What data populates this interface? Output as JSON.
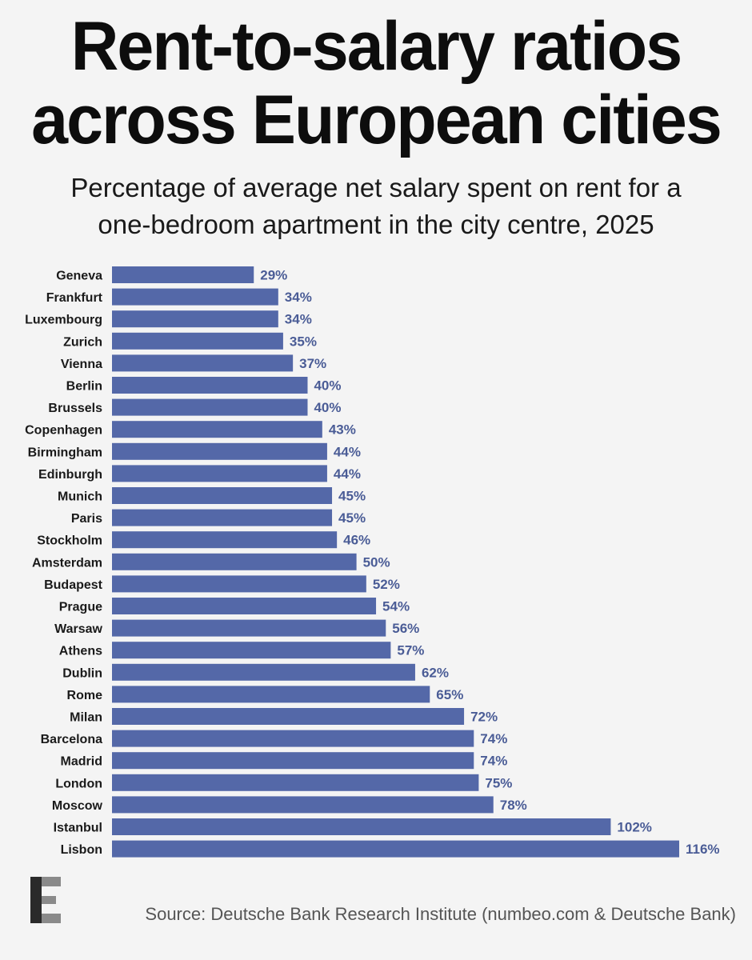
{
  "header": {
    "title_line1": "Rent-to-salary ratios",
    "title_line2": "across European cities",
    "subtitle_line1": "Percentage of average net salary spent on rent for a",
    "subtitle_line2": "one-bedroom apartment in the city centre, 2025"
  },
  "footer": {
    "source": "Source: Deutsche Bank Research Institute (numbeo.com & Deutsche Bank)",
    "logo_icon": "e-logo-icon"
  },
  "colors": {
    "bar": "#5468a8",
    "value_label": "#4a5c96",
    "background": "#f4f4f4"
  },
  "chart_data": {
    "type": "bar",
    "orientation": "horizontal",
    "title": "Rent-to-salary ratios across European cities",
    "subtitle": "Percentage of average net salary spent on rent for a one-bedroom apartment in the city centre, 2025",
    "xlabel": "",
    "ylabel": "",
    "unit": "%",
    "xlim": [
      0,
      116
    ],
    "grid": false,
    "categories": [
      "Geneva",
      "Frankfurt",
      "Luxembourg",
      "Zurich",
      "Vienna",
      "Berlin",
      "Brussels",
      "Copenhagen",
      "Birmingham",
      "Edinburgh",
      "Munich",
      "Paris",
      "Stockholm",
      "Amsterdam",
      "Budapest",
      "Prague",
      "Warsaw",
      "Athens",
      "Dublin",
      "Rome",
      "Milan",
      "Barcelona",
      "Madrid",
      "London",
      "Moscow",
      "Istanbul",
      "Lisbon"
    ],
    "values": [
      29,
      34,
      34,
      35,
      37,
      40,
      40,
      43,
      44,
      44,
      45,
      45,
      46,
      50,
      52,
      54,
      56,
      57,
      62,
      65,
      72,
      74,
      74,
      75,
      78,
      102,
      116
    ]
  }
}
